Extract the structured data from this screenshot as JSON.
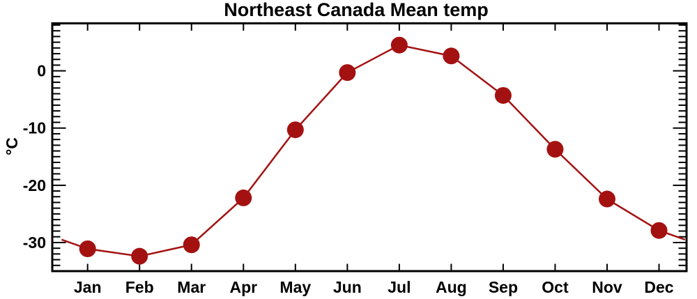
{
  "page": {
    "background": "#ffffff"
  },
  "chart_data": {
    "type": "line",
    "title": "Northeast Canada Mean temp",
    "xlabel": "",
    "ylabel": "°C",
    "categories": [
      "Jan",
      "Feb",
      "Mar",
      "Apr",
      "May",
      "Jun",
      "Jul",
      "Aug",
      "Sep",
      "Oct",
      "Nov",
      "Dec"
    ],
    "values": [
      -31.1,
      -32.4,
      -30.4,
      -22.2,
      -10.3,
      -0.3,
      4.5,
      2.6,
      -4.3,
      -13.7,
      -22.4,
      -27.9
    ],
    "ylim": [
      -35.0,
      8.3
    ],
    "xlim": [
      0.32,
      12.53
    ],
    "y_major_ticks": [
      0,
      -10,
      -20,
      -30
    ],
    "y_minor_step": 1,
    "x_tick_positions": "month-centers",
    "wrap_line_to_edges": true,
    "edge_x": [
      0.5,
      12.5
    ],
    "grid": false,
    "legend": "none",
    "line_color": "#a41111",
    "line_width": 2.5,
    "marker": "filled-circle",
    "marker_radius": 12,
    "frame_color": "#000000",
    "text_color": "#000000",
    "background": "#ffffff"
  }
}
